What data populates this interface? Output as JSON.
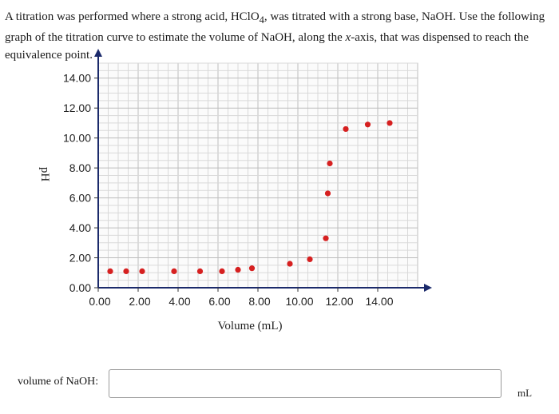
{
  "question": {
    "part1": "A titration was performed where a strong acid, HClO",
    "sub4": "4",
    "part2": ", was titrated with a strong base, NaOH. Use the following graph of the titration curve to estimate the volume of NaOH, along the ",
    "italic_x": "x",
    "part3": "-axis, that was dispensed to reach the equivalence point."
  },
  "chart_data": {
    "type": "scatter",
    "xlabel": "Volume (mL)",
    "ylabel": "pH",
    "xlim": [
      0,
      16
    ],
    "ylim": [
      0,
      15
    ],
    "x_ticks": [
      0,
      2,
      4,
      6,
      8,
      10,
      12,
      14
    ],
    "x_tick_labels": [
      "0.00",
      "2.00",
      "4.00",
      "6.00",
      "8.00",
      "10.00",
      "12.00",
      "14.00"
    ],
    "y_ticks": [
      0,
      2,
      4,
      6,
      8,
      10,
      12,
      14
    ],
    "y_tick_labels": [
      "0.00",
      "2.00",
      "4.00",
      "6.00",
      "8.00",
      "10.00",
      "12.00",
      "14.00"
    ],
    "grid": true,
    "point_color": "#d62020",
    "points": [
      {
        "x": 0.6,
        "y": 1.1
      },
      {
        "x": 1.4,
        "y": 1.1
      },
      {
        "x": 2.2,
        "y": 1.1
      },
      {
        "x": 3.8,
        "y": 1.1
      },
      {
        "x": 5.1,
        "y": 1.1
      },
      {
        "x": 6.2,
        "y": 1.1
      },
      {
        "x": 7.0,
        "y": 1.2
      },
      {
        "x": 7.7,
        "y": 1.3
      },
      {
        "x": 9.6,
        "y": 1.6
      },
      {
        "x": 10.6,
        "y": 1.9
      },
      {
        "x": 11.4,
        "y": 3.3
      },
      {
        "x": 11.5,
        "y": 6.3
      },
      {
        "x": 11.6,
        "y": 8.3
      },
      {
        "x": 12.4,
        "y": 10.6
      },
      {
        "x": 13.5,
        "y": 10.9
      },
      {
        "x": 14.6,
        "y": 11.0
      }
    ]
  },
  "answer": {
    "label": "volume of NaOH:",
    "value": "",
    "unit": "mL"
  }
}
